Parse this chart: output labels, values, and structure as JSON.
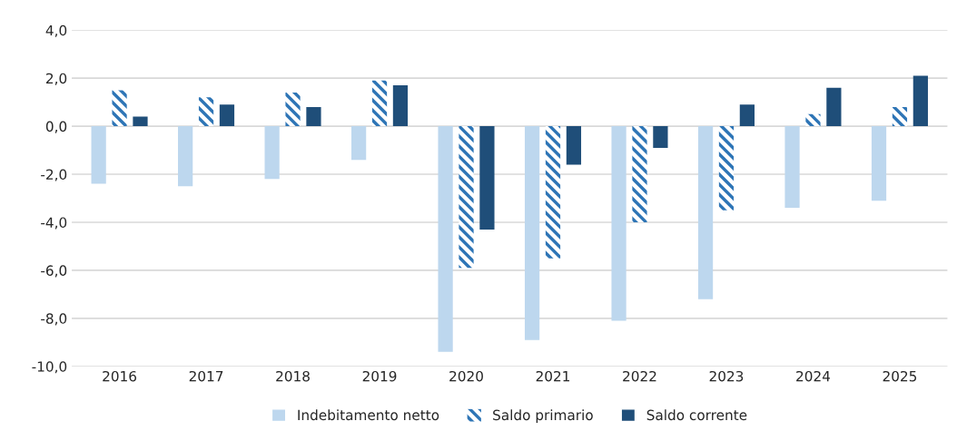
{
  "chart_data": {
    "type": "bar",
    "categories": [
      "2016",
      "2017",
      "2018",
      "2019",
      "2020",
      "2021",
      "2022",
      "2023",
      "2024",
      "2025"
    ],
    "series": [
      {
        "name": "Indebitamento netto",
        "color": "#bdd7ee",
        "values": [
          -2.4,
          -2.5,
          -2.2,
          -1.4,
          -9.4,
          -8.9,
          -8.1,
          -7.2,
          -3.4,
          -3.1
        ]
      },
      {
        "name": "Saldo primario",
        "color": "#2e75b6",
        "values": [
          1.5,
          1.2,
          1.4,
          1.9,
          -5.9,
          -5.5,
          -4.0,
          -3.5,
          0.5,
          0.8
        ]
      },
      {
        "name": "Saldo corrente",
        "color": "#1f4e79",
        "values": [
          0.4,
          0.9,
          0.8,
          1.7,
          -4.3,
          -1.6,
          -0.9,
          0.9,
          1.6,
          2.1
        ]
      }
    ],
    "ylim": [
      -10,
      4
    ],
    "yticks": [
      {
        "value": -10,
        "label": "-10,0"
      },
      {
        "value": -8,
        "label": "-8,0"
      },
      {
        "value": -6,
        "label": "-6,0"
      },
      {
        "value": -4,
        "label": "-4,0"
      },
      {
        "value": -2,
        "label": "-2,0"
      },
      {
        "value": 0,
        "label": "0,0"
      },
      {
        "value": 2,
        "label": "2,0"
      },
      {
        "value": 4,
        "label": "4,0"
      }
    ],
    "grid": "y",
    "legend": "bottom"
  }
}
